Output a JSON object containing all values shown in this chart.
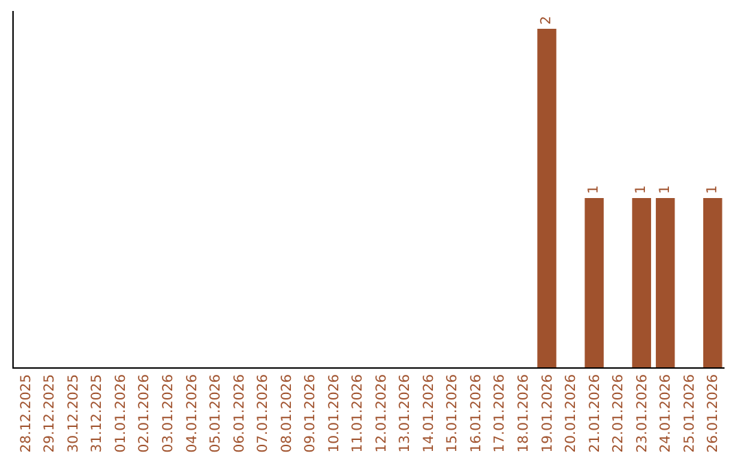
{
  "chart_data": {
    "type": "bar",
    "categories": [
      "28.12.2025",
      "29.12.2025",
      "30.12.2025",
      "31.12.2025",
      "01.01.2026",
      "02.01.2026",
      "03.01.2026",
      "04.01.2026",
      "05.01.2026",
      "06.01.2026",
      "07.01.2026",
      "08.01.2026",
      "09.01.2026",
      "10.01.2026",
      "11.01.2026",
      "12.01.2026",
      "13.01.2026",
      "14.01.2026",
      "15.01.2026",
      "16.01.2026",
      "17.01.2026",
      "18.01.2026",
      "19.01.2026",
      "20.01.2026",
      "21.01.2026",
      "22.01.2026",
      "23.01.2026",
      "24.01.2026",
      "25.01.2026",
      "26.01.2026"
    ],
    "values": [
      null,
      null,
      null,
      null,
      null,
      null,
      null,
      null,
      null,
      null,
      null,
      null,
      null,
      null,
      null,
      null,
      null,
      null,
      null,
      null,
      null,
      null,
      2,
      null,
      1,
      null,
      1,
      1,
      null,
      1
    ],
    "data_labels": true,
    "color": "#a0522d",
    "grid": false,
    "tick_labels": "x"
  }
}
